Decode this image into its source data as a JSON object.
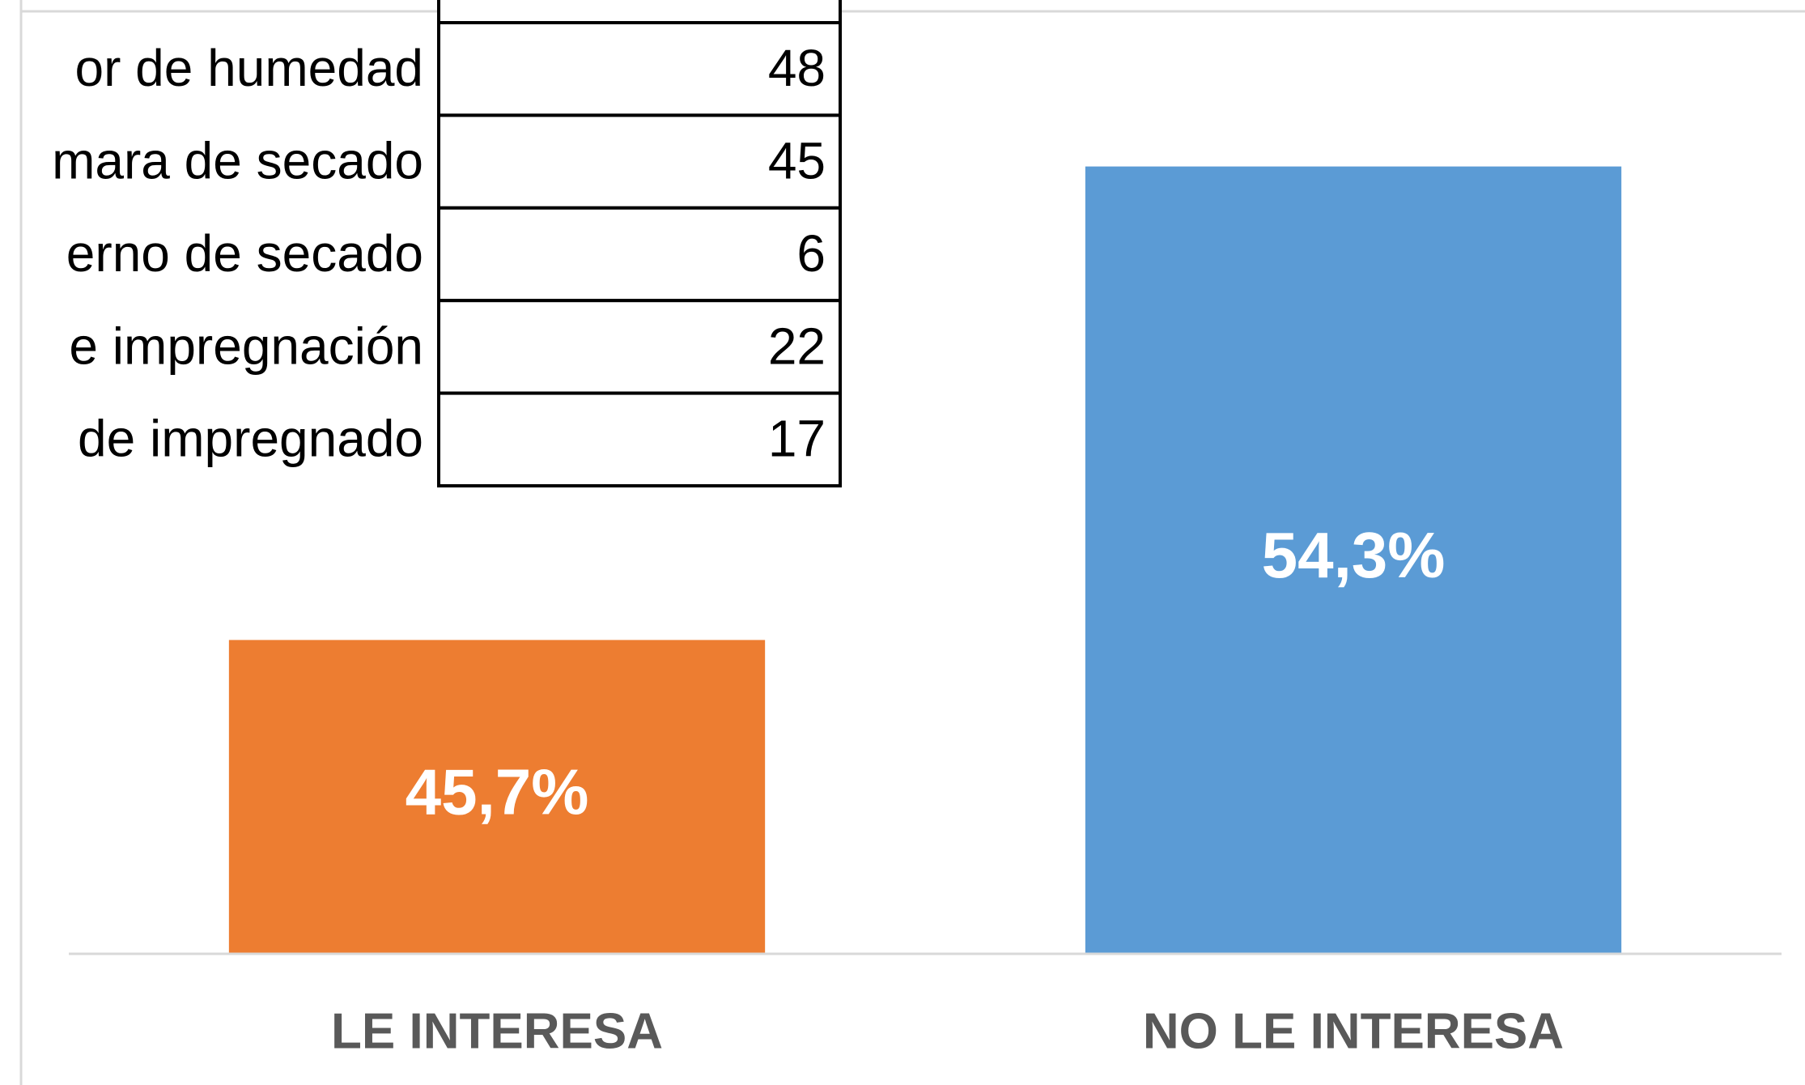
{
  "chart_data": {
    "type": "bar",
    "categories": [
      "LE INTERESA",
      "NO LE INTERESA"
    ],
    "values": [
      45.7,
      54.3
    ],
    "value_labels": [
      "45,7%",
      "54,3%"
    ],
    "colors": [
      "#ED7D31",
      "#5B9BD5"
    ],
    "ylim": [
      40,
      57
    ]
  },
  "table": {
    "rows": [
      [
        "or de humedad",
        48
      ],
      [
        "mara de secado",
        45
      ],
      [
        "erno de secado",
        6
      ],
      [
        "e impregnación",
        22
      ],
      [
        "de impregnado",
        17
      ]
    ]
  }
}
